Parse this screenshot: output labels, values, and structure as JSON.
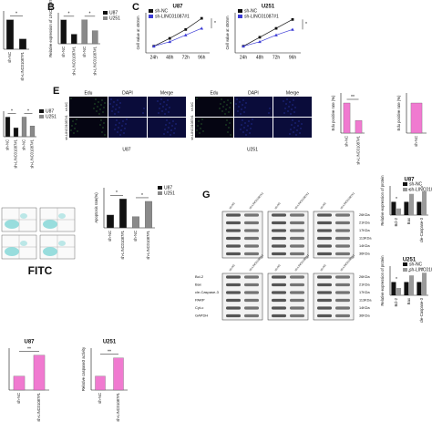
{
  "panel_labels": [
    "B",
    "C",
    "E",
    "G"
  ],
  "chart_data": [
    {
      "type": "bar",
      "categories": [
        "sh-NC",
        "sh-LINC01087#1"
      ],
      "values": [
        1.0,
        0.35
      ],
      "colors": [
        "#111111",
        "#111111"
      ],
      "ylim": [
        0,
        1.3
      ],
      "significance": [
        "*"
      ]
    },
    {
      "type": "bar",
      "y_label": "Relative expression of LINC01087",
      "categories": [
        "sh-NC",
        "sh-LINC01087#1",
        "sh-NC",
        "sh-LINC01087#1"
      ],
      "values": [
        1.0,
        0.4,
        1.0,
        0.55
      ],
      "colors": [
        "#111111",
        "#111111",
        "#8a8a8a",
        "#8a8a8a"
      ],
      "legend": [
        {
          "name": "U87",
          "color": "#111111"
        },
        {
          "name": "U251",
          "color": "#8a8a8a"
        }
      ],
      "ylim": [
        0,
        1.3
      ],
      "significance": [
        "*",
        "*"
      ]
    },
    {
      "type": "line",
      "title": "U87",
      "y_label": "Cell value at 450nm",
      "categories": [
        "24h",
        "48h",
        "72h",
        "96h"
      ],
      "series": [
        {
          "name": "sh-NC",
          "color": "#111111",
          "marker": "square",
          "values": [
            0.3,
            0.65,
            1.05,
            1.55
          ]
        },
        {
          "name": "sh-LINC01087#1",
          "color": "#3b3bd6",
          "marker": "triangle",
          "values": [
            0.3,
            0.5,
            0.8,
            1.1
          ]
        }
      ],
      "ylim": [
        0,
        1.8
      ],
      "significance": [
        "*"
      ]
    },
    {
      "type": "line",
      "title": "U251",
      "y_label": "Cell value at 450nm",
      "categories": [
        "24h",
        "48h",
        "72h",
        "96h"
      ],
      "series": [
        {
          "name": "sh-NC",
          "color": "#111111",
          "marker": "square",
          "values": [
            0.3,
            0.7,
            1.1,
            1.5
          ]
        },
        {
          "name": "sh-LINC01087#1",
          "color": "#3b3bd6",
          "marker": "triangle",
          "values": [
            0.3,
            0.5,
            0.8,
            1.05
          ]
        }
      ],
      "ylim": [
        0,
        1.8
      ],
      "significance": [
        "*"
      ]
    },
    {
      "type": "bar",
      "categories": [
        "sh-NC",
        "sh-LINC01087#1",
        "sh-NC",
        "sh-LINC01087#1"
      ],
      "values": [
        1.0,
        0.45,
        1.0,
        0.55
      ],
      "colors": [
        "#111111",
        "#111111",
        "#8a8a8a",
        "#8a8a8a"
      ],
      "legend": [
        {
          "name": "U87",
          "color": "#111111"
        },
        {
          "name": "U251",
          "color": "#8a8a8a"
        }
      ],
      "ylim": [
        0,
        1.3
      ],
      "significance": [
        "*",
        "*"
      ]
    },
    {
      "type": "bar",
      "y_label": "Edu positive rate (%)",
      "categories": [
        "sh-NC",
        "sh-LINC01087#1"
      ],
      "values": [
        60,
        25
      ],
      "colors": [
        "#f07ad0",
        "#f07ad0"
      ],
      "ylim": [
        0,
        80
      ],
      "significance": [
        "**"
      ]
    },
    {
      "type": "bar",
      "y_label": "Edu positive rate (%)",
      "categories": [
        "sh-NC"
      ],
      "values": [
        60
      ],
      "colors": [
        "#f07ad0"
      ],
      "ylim": [
        0,
        80
      ]
    },
    {
      "type": "bar",
      "y_label": "Apoptosis rate(%)",
      "categories": [
        "sh-NC",
        "sh-LINC01087#1",
        "sh-NC",
        "sh-LINC01087#1"
      ],
      "values": [
        8,
        18,
        7,
        16.5
      ],
      "colors": [
        "#111111",
        "#111111",
        "#8a8a8a",
        "#8a8a8a"
      ],
      "legend": [
        {
          "name": "U87",
          "color": "#111111"
        },
        {
          "name": "U251",
          "color": "#8a8a8a"
        }
      ],
      "ylim": [
        0,
        25
      ],
      "significance": [
        "*",
        "*"
      ]
    },
    {
      "type": "bar",
      "title": "U87",
      "y_label": "Relative expression of protein",
      "categories": [
        "Bcl-2",
        "Bax",
        "cle-Caspase-3"
      ],
      "series": [
        {
          "name": "sh-NC",
          "color": "#111111",
          "values": [
            1.0,
            1.0,
            1.0
          ]
        },
        {
          "name": "sh-LINC01087#1",
          "color": "#9a9a9a",
          "values": [
            0.5,
            1.6,
            1.8
          ]
        }
      ],
      "ylim": [
        0,
        2.2
      ],
      "significance": [
        "*",
        "*",
        "*"
      ]
    },
    {
      "type": "bar",
      "title": "U251",
      "y_label": "Relative expression of protein",
      "categories": [
        "Bcl-2",
        "Bax",
        "cle-Caspase-3"
      ],
      "series": [
        {
          "name": "sh-NC",
          "color": "#111111",
          "values": [
            1.0,
            1.0,
            1.0
          ]
        },
        {
          "name": "sh-LINC01087#1",
          "color": "#9a9a9a",
          "values": [
            0.55,
            1.5,
            1.7
          ]
        }
      ],
      "ylim": [
        0,
        2.2
      ],
      "significance": [
        "*",
        "*",
        "*"
      ]
    },
    {
      "type": "bar",
      "title": "U87",
      "categories": [
        "sh-NC",
        "sh-LINC01087#1"
      ],
      "values": [
        1.0,
        2.5
      ],
      "colors": [
        "#f07ad0",
        "#f07ad0"
      ],
      "ylim": [
        0,
        3
      ],
      "significance": [
        "**"
      ]
    },
    {
      "type": "bar",
      "title": "U251",
      "y_label": "Relative caspase3 activity",
      "categories": [
        "sh-NC",
        "sh-LINC01087#1"
      ],
      "values": [
        1.0,
        2.3
      ],
      "colors": [
        "#f07ad0",
        "#f07ad0"
      ],
      "ylim": [
        0,
        3
      ],
      "significance": [
        "**"
      ]
    }
  ],
  "edu_panels": [
    {
      "cell": "U87",
      "columns": [
        "Edu",
        "DAPI",
        "Merge"
      ],
      "rows": [
        "sh-NC",
        "sh-LINC01087#1"
      ]
    },
    {
      "cell": "U251",
      "columns": [
        "Edu",
        "DAPI",
        "Merge"
      ],
      "rows": [
        "sh-NC",
        "sh-LINC01087#1"
      ]
    }
  ],
  "flow": {
    "axis_label": "FITC"
  },
  "western_blot": {
    "lanes": [
      "sh-NC",
      "sh-LINC01087#1"
    ],
    "proteins": [
      "Bcl-2",
      "Bax",
      "cle-Caspase-3",
      "PARP",
      "Cyt-c",
      "GAPDH"
    ],
    "sizes": [
      "26KDa",
      "21KDa",
      "17KDa",
      "113KDa",
      "14KDa",
      "36KDa"
    ]
  }
}
